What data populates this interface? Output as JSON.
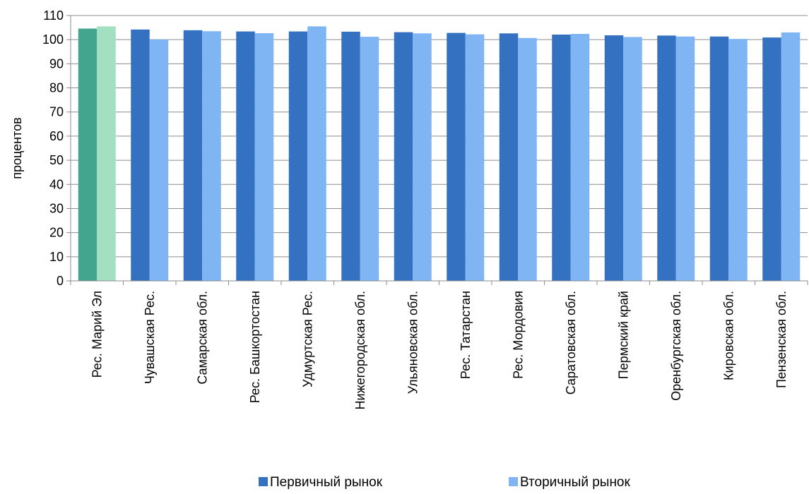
{
  "chart_data": {
    "type": "bar",
    "title": "",
    "xlabel": "",
    "ylabel": "процентов",
    "ylim": [
      0,
      110
    ],
    "yticks": [
      0,
      10,
      20,
      30,
      40,
      50,
      60,
      70,
      80,
      90,
      100,
      110
    ],
    "grid": true,
    "legend_position": "bottom",
    "categories": [
      "Рес. Марий Эл",
      "Чувашская Рес.",
      "Самарская обл.",
      "Рес. Башкортостан",
      "Удмуртская Рес.",
      "Нижегородская обл.",
      "Ульяновская обл.",
      "Рес. Татарстан",
      "Рес. Мордовия",
      "Саратовская обл.",
      "Пермский край",
      "Оренбургская обл.",
      "Кировская обл.",
      "Пензенская обл."
    ],
    "series": [
      {
        "name": "Первичный рынок",
        "color": "#3571C1",
        "highlight_color": "#43A58E",
        "values": [
          104.6,
          104.2,
          103.9,
          103.4,
          103.4,
          103.3,
          103.1,
          102.8,
          102.6,
          102.1,
          101.8,
          101.7,
          101.3,
          100.9
        ]
      },
      {
        "name": "Вторичный рынок",
        "color": "#7FB5F3",
        "highlight_color": "#A3DFC1",
        "values": [
          105.5,
          100.1,
          103.5,
          102.7,
          105.5,
          101.2,
          102.6,
          102.2,
          100.7,
          102.4,
          101.1,
          101.3,
          100.3,
          103.0
        ]
      }
    ],
    "highlight_index": 0
  }
}
